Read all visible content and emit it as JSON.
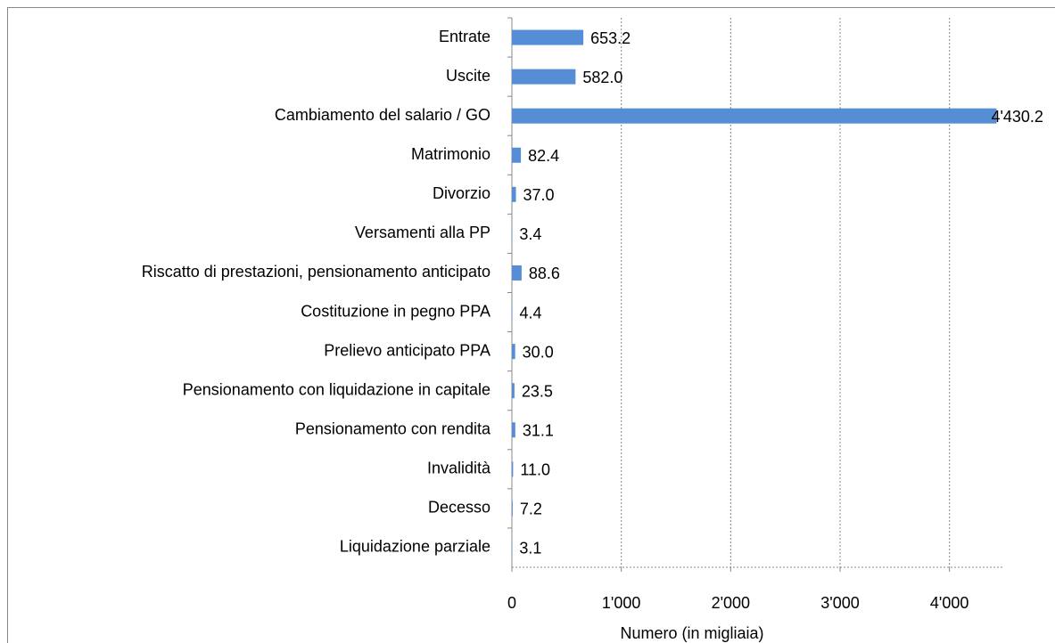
{
  "chart_data": {
    "type": "bar",
    "orientation": "horizontal",
    "x_label": "Numero (in migliaia)",
    "categories": [
      "Entrate",
      "Uscite",
      "Cambiamento del salario / GO",
      "Matrimonio",
      "Divorzio",
      "Versamenti alla PP",
      "Riscatto di prestazioni, pensionamento anticipato",
      "Costituzione in pegno PPA",
      "Prelievo anticipato PPA",
      "Pensionamento con liquidazione in capitale",
      "Pensionamento con rendita",
      "Invalidità",
      "Decesso",
      "Liquidazione parziale"
    ],
    "values": [
      653.2,
      582.0,
      4430.2,
      82.4,
      37.0,
      3.4,
      88.6,
      4.4,
      30.0,
      23.5,
      31.1,
      11.0,
      7.2,
      3.1
    ],
    "value_labels": [
      "653.2",
      "582.0",
      "4'430.2",
      "82.4",
      "37.0",
      "3.4",
      "88.6",
      "4.4",
      "30.0",
      "23.5",
      "31.1",
      "11.0",
      "7.2",
      "3.1"
    ],
    "color": "#558ed5",
    "xlim": [
      0,
      4500
    ],
    "xticks": [
      0,
      {
        "value": 1000,
        "label": "1'000"
      },
      {
        "value": 2000,
        "label": "2'000"
      },
      {
        "value": 3000,
        "label": "3'000"
      },
      {
        "value": 4000,
        "label": "4'000"
      }
    ],
    "grid": true
  }
}
